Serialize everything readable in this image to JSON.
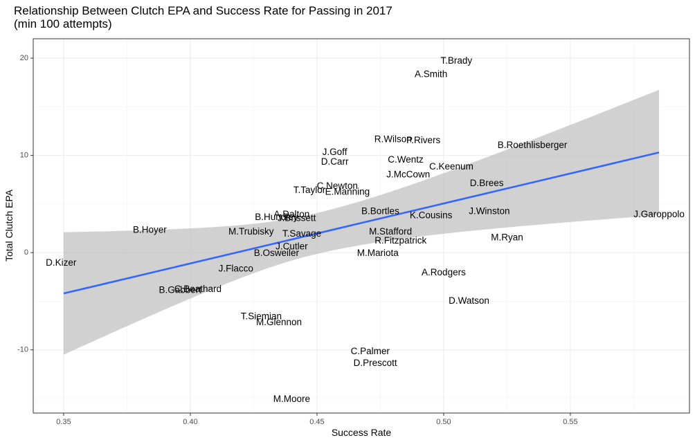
{
  "chart_data": {
    "type": "scatter",
    "title": "Relationship Between Clutch EPA and Success Rate for Passing in 2017",
    "subtitle": "(min 100 attempts)",
    "xlabel": "Success Rate",
    "ylabel": "Total Clutch EPA",
    "xlim": [
      0.338,
      0.597
    ],
    "ylim": [
      -16.5,
      22
    ],
    "x_ticks": [
      0.35,
      0.4,
      0.45,
      0.5,
      0.55
    ],
    "x_tick_labels": [
      "0.35",
      "0.40",
      "0.45",
      "0.50",
      "0.55"
    ],
    "y_ticks": [
      -10,
      0,
      10,
      20
    ],
    "y_tick_labels": [
      "-10",
      "0",
      "10",
      "20"
    ],
    "grid": true,
    "point_style": "text-labels",
    "points": [
      {
        "label": "T.Brady",
        "x": 0.505,
        "y": 19.7
      },
      {
        "label": "A.Smith",
        "x": 0.495,
        "y": 18.3
      },
      {
        "label": "R.Wilson",
        "x": 0.48,
        "y": 11.6
      },
      {
        "label": "P.Rivers",
        "x": 0.492,
        "y": 11.5
      },
      {
        "label": "B.Roethlisberger",
        "x": 0.535,
        "y": 11.0
      },
      {
        "label": "J.Goff",
        "x": 0.457,
        "y": 10.3
      },
      {
        "label": "D.Carr",
        "x": 0.457,
        "y": 9.3
      },
      {
        "label": "C.Wentz",
        "x": 0.485,
        "y": 9.5
      },
      {
        "label": "C.Keenum",
        "x": 0.503,
        "y": 8.8
      },
      {
        "label": "J.McCown",
        "x": 0.486,
        "y": 8.0
      },
      {
        "label": "D.Brees",
        "x": 0.517,
        "y": 7.1
      },
      {
        "label": "C.Newton",
        "x": 0.458,
        "y": 6.8
      },
      {
        "label": "T.Taylor",
        "x": 0.447,
        "y": 6.4
      },
      {
        "label": "E.Manning",
        "x": 0.462,
        "y": 6.2
      },
      {
        "label": "B.Bortles",
        "x": 0.475,
        "y": 4.2
      },
      {
        "label": "K.Cousins",
        "x": 0.495,
        "y": 3.8
      },
      {
        "label": "J.Winston",
        "x": 0.518,
        "y": 4.2
      },
      {
        "label": "J.Garoppolo",
        "x": 0.585,
        "y": 3.9
      },
      {
        "label": "A.Dalton",
        "x": 0.44,
        "y": 3.9
      },
      {
        "label": "B.Hundley",
        "x": 0.434,
        "y": 3.6
      },
      {
        "label": "J.Brissett",
        "x": 0.442,
        "y": 3.5
      },
      {
        "label": "B.Hoyer",
        "x": 0.384,
        "y": 2.3
      },
      {
        "label": "M.Trubisky",
        "x": 0.424,
        "y": 2.1
      },
      {
        "label": "T.Savage",
        "x": 0.444,
        "y": 1.9
      },
      {
        "label": "M.Stafford",
        "x": 0.479,
        "y": 2.1
      },
      {
        "label": "R.Fitzpatrick",
        "x": 0.483,
        "y": 1.2
      },
      {
        "label": "M.Ryan",
        "x": 0.525,
        "y": 1.5
      },
      {
        "label": "J.Cutler",
        "x": 0.44,
        "y": 0.6
      },
      {
        "label": "B.Osweiler",
        "x": 0.434,
        "y": -0.1
      },
      {
        "label": "M.Mariota",
        "x": 0.474,
        "y": -0.1
      },
      {
        "label": "D.Kizer",
        "x": 0.349,
        "y": -1.1
      },
      {
        "label": "J.Flacco",
        "x": 0.418,
        "y": -1.7
      },
      {
        "label": "A.Rodgers",
        "x": 0.5,
        "y": -2.1
      },
      {
        "label": "B.Gabbert",
        "x": 0.396,
        "y": -3.9
      },
      {
        "label": "C.Beathard",
        "x": 0.403,
        "y": -3.8
      },
      {
        "label": "D.Watson",
        "x": 0.51,
        "y": -5.0
      },
      {
        "label": "T.Siemian",
        "x": 0.428,
        "y": -6.6
      },
      {
        "label": "M.Glennon",
        "x": 0.435,
        "y": -7.2
      },
      {
        "label": "C.Palmer",
        "x": 0.471,
        "y": -10.2
      },
      {
        "label": "D.Prescott",
        "x": 0.473,
        "y": -11.4
      },
      {
        "label": "M.Moore",
        "x": 0.44,
        "y": -15.1
      }
    ],
    "fit": {
      "method": "linear",
      "x_range": [
        0.35,
        0.585
      ],
      "y_start": -4.2,
      "y_end": 10.3,
      "ci_lower_start": -10.6,
      "ci_upper_start": 2.0,
      "ci_lower_end": 3.9,
      "ci_upper_end": 16.8,
      "line_color": "#3366ff",
      "band_color": "#bdbdbd"
    }
  }
}
